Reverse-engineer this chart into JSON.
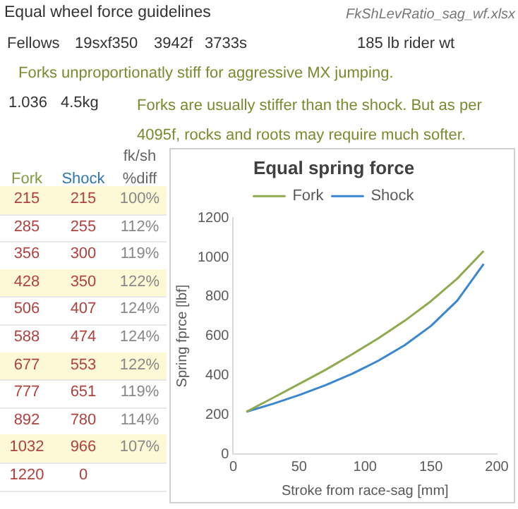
{
  "chart_data": {
    "type": "line",
    "title": "Equal spring force",
    "xlabel": "Stroke from race-sag [mm]",
    "ylabel": "Spring fprce [lbf]",
    "x": [
      10,
      30,
      50,
      70,
      90,
      110,
      130,
      150,
      170,
      190
    ],
    "series": [
      {
        "name": "Fork",
        "color": "#8faa4f",
        "values": [
          215,
          285,
          356,
          428,
          506,
          588,
          677,
          777,
          892,
          1032
        ]
      },
      {
        "name": "Shock",
        "color": "#3b86d0",
        "values": [
          215,
          255,
          300,
          350,
          407,
          474,
          553,
          651,
          780,
          966
        ]
      }
    ],
    "xlim": [
      0,
      200
    ],
    "xticks": [
      0,
      50,
      100,
      150,
      200
    ],
    "ylim": [
      0,
      1200
    ],
    "yticks": [
      0,
      200,
      400,
      600,
      800,
      1000,
      1200
    ],
    "grid": false,
    "legend": "top",
    "marker": "none",
    "line_style": "solid",
    "annotations": [
      "Equal wheel force guidelines",
      "FkShLevRatio_sag_wf.xlsx",
      "Fellows",
      "19sxf350",
      "3942f",
      "3733s",
      "185 lb rider wt",
      "Forks unproportionatly stiff for aggressive MX jumping.",
      "1.036",
      "4.5kg",
      "Forks are usually stiffer than the shock.  But as per 4095f, rocks and roots may require much softer.",
      "fk/sh",
      "%diff",
      "215",
      "215",
      "100%",
      "285",
      "255",
      "112%",
      "356",
      "300",
      "119%",
      "428",
      "350",
      "122%",
      "506",
      "407",
      "124%",
      "588",
      "474",
      "124%",
      "677",
      "553",
      "122%",
      "777",
      "651",
      "119%",
      "892",
      "780",
      "114%",
      "1032",
      "966",
      "107%",
      "1220",
      "0"
    ]
  }
}
